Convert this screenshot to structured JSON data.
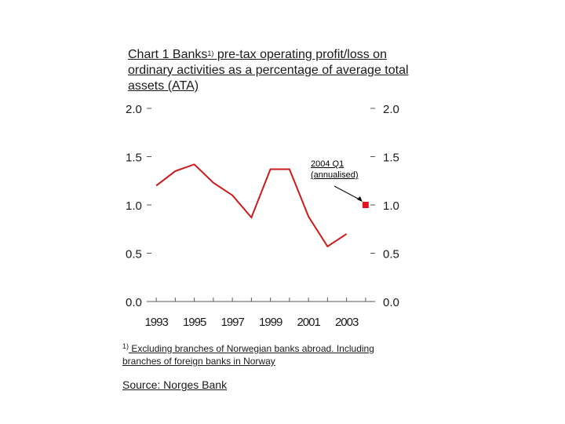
{
  "title": {
    "prefix": "Chart 1 Banks",
    "sup": "1)",
    "line2": " pre-tax operating profit/loss on ordinary activities as a percentage of average total assets (ATA)",
    "suffix": ")"
  },
  "footnote": {
    "sup": "1)",
    "text": " Excluding branches of Norwegian banks abroad. Including branches of foreign banks in Norway"
  },
  "source": "Source: Norges Bank",
  "chart_data": {
    "type": "line",
    "x": [
      1993,
      1994,
      1995,
      1996,
      1997,
      1998,
      1999,
      2000,
      2001,
      2002,
      2003
    ],
    "series": [
      {
        "values": [
          1.2,
          1.35,
          1.42,
          1.23,
          1.1,
          0.87,
          1.37,
          1.37,
          0.88,
          0.57,
          0.7
        ],
        "color": "#cc1a1a"
      }
    ],
    "marker": {
      "x": 2004,
      "value": 1.0,
      "color": "#e8101a",
      "label": "2004 Q1 (annualised)"
    },
    "x_ticks": [
      "1993",
      "1995",
      "1997",
      "1999",
      "2001",
      "2003"
    ],
    "y_ticks": [
      "0.0",
      "0.5",
      "1.0",
      "1.5",
      "2.0"
    ],
    "ylim": [
      0,
      2.0
    ],
    "xlim": [
      1992.5,
      2004.5
    ],
    "grid": false
  }
}
